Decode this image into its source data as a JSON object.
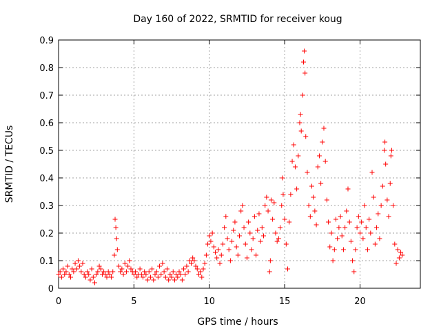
{
  "chart_data": {
    "type": "scatter",
    "title": "Day 160 of 2022, SRMTID for receiver koug",
    "xlabel": "GPS time / hours",
    "ylabel": "SRMTID / TECUs",
    "xlim": [
      0,
      24
    ],
    "ylim": [
      0,
      0.9
    ],
    "xticks": [
      0,
      5,
      10,
      15,
      20
    ],
    "yticks": [
      0,
      0.1,
      0.2,
      0.3,
      0.4,
      0.5,
      0.6,
      0.7,
      0.8,
      0.9
    ],
    "ytick_labels": [
      "0",
      "0.1",
      "0.2",
      "0.3",
      "0.4",
      "0.5",
      "0.6",
      "0.7",
      "0.8",
      "0.9"
    ],
    "grid": true,
    "marker": "+",
    "color": "#ff0000",
    "series": [
      {
        "name": "SRMTID",
        "points": [
          [
            0.0,
            0.05
          ],
          [
            0.1,
            0.06
          ],
          [
            0.2,
            0.04
          ],
          [
            0.3,
            0.07
          ],
          [
            0.4,
            0.05
          ],
          [
            0.5,
            0.06
          ],
          [
            0.6,
            0.08
          ],
          [
            0.7,
            0.05
          ],
          [
            0.8,
            0.04
          ],
          [
            0.9,
            0.07
          ],
          [
            1.0,
            0.06
          ],
          [
            1.1,
            0.09
          ],
          [
            1.2,
            0.07
          ],
          [
            1.3,
            0.1
          ],
          [
            1.4,
            0.08
          ],
          [
            1.5,
            0.06
          ],
          [
            1.6,
            0.09
          ],
          [
            1.7,
            0.05
          ],
          [
            1.8,
            0.04
          ],
          [
            1.9,
            0.06
          ],
          [
            2.0,
            0.05
          ],
          [
            2.1,
            0.03
          ],
          [
            2.2,
            0.07
          ],
          [
            2.3,
            0.04
          ],
          [
            2.4,
            0.02
          ],
          [
            2.5,
            0.05
          ],
          [
            2.6,
            0.06
          ],
          [
            2.7,
            0.08
          ],
          [
            2.8,
            0.07
          ],
          [
            2.9,
            0.05
          ],
          [
            3.0,
            0.06
          ],
          [
            3.1,
            0.05
          ],
          [
            3.2,
            0.04
          ],
          [
            3.3,
            0.06
          ],
          [
            3.4,
            0.05
          ],
          [
            3.5,
            0.04
          ],
          [
            3.6,
            0.06
          ],
          [
            3.7,
            0.12
          ],
          [
            3.75,
            0.25
          ],
          [
            3.8,
            0.22
          ],
          [
            3.85,
            0.18
          ],
          [
            3.9,
            0.14
          ],
          [
            4.0,
            0.08
          ],
          [
            4.1,
            0.06
          ],
          [
            4.2,
            0.07
          ],
          [
            4.3,
            0.05
          ],
          [
            4.4,
            0.09
          ],
          [
            4.5,
            0.06
          ],
          [
            4.6,
            0.08
          ],
          [
            4.7,
            0.1
          ],
          [
            4.8,
            0.07
          ],
          [
            4.9,
            0.06
          ],
          [
            5.0,
            0.05
          ],
          [
            5.1,
            0.06
          ],
          [
            5.2,
            0.04
          ],
          [
            5.3,
            0.05
          ],
          [
            5.4,
            0.07
          ],
          [
            5.5,
            0.05
          ],
          [
            5.6,
            0.04
          ],
          [
            5.7,
            0.06
          ],
          [
            5.8,
            0.05
          ],
          [
            5.9,
            0.03
          ],
          [
            6.0,
            0.06
          ],
          [
            6.1,
            0.04
          ],
          [
            6.2,
            0.07
          ],
          [
            6.3,
            0.03
          ],
          [
            6.4,
            0.05
          ],
          [
            6.5,
            0.06
          ],
          [
            6.6,
            0.04
          ],
          [
            6.7,
            0.08
          ],
          [
            6.8,
            0.05
          ],
          [
            6.9,
            0.09
          ],
          [
            7.0,
            0.06
          ],
          [
            7.1,
            0.04
          ],
          [
            7.2,
            0.07
          ],
          [
            7.3,
            0.03
          ],
          [
            7.4,
            0.05
          ],
          [
            7.5,
            0.04
          ],
          [
            7.6,
            0.06
          ],
          [
            7.7,
            0.03
          ],
          [
            7.8,
            0.05
          ],
          [
            7.9,
            0.04
          ],
          [
            8.0,
            0.06
          ],
          [
            8.1,
            0.05
          ],
          [
            8.2,
            0.03
          ],
          [
            8.3,
            0.07
          ],
          [
            8.4,
            0.05
          ],
          [
            8.5,
            0.08
          ],
          [
            8.6,
            0.06
          ],
          [
            8.7,
            0.1
          ],
          [
            8.8,
            0.09
          ],
          [
            8.9,
            0.11
          ],
          [
            9.0,
            0.1
          ],
          [
            9.1,
            0.08
          ],
          [
            9.2,
            0.07
          ],
          [
            9.3,
            0.05
          ],
          [
            9.4,
            0.06
          ],
          [
            9.5,
            0.04
          ],
          [
            9.6,
            0.07
          ],
          [
            9.7,
            0.09
          ],
          [
            9.8,
            0.12
          ],
          [
            9.9,
            0.16
          ],
          [
            10.0,
            0.19
          ],
          [
            10.1,
            0.17
          ],
          [
            10.2,
            0.2
          ],
          [
            10.3,
            0.15
          ],
          [
            10.4,
            0.13
          ],
          [
            10.5,
            0.11
          ],
          [
            10.6,
            0.14
          ],
          [
            10.7,
            0.09
          ],
          [
            10.8,
            0.12
          ],
          [
            10.9,
            0.16
          ],
          [
            11.0,
            0.22
          ],
          [
            11.1,
            0.26
          ],
          [
            11.2,
            0.18
          ],
          [
            11.3,
            0.14
          ],
          [
            11.4,
            0.1
          ],
          [
            11.5,
            0.17
          ],
          [
            11.6,
            0.21
          ],
          [
            11.7,
            0.24
          ],
          [
            11.8,
            0.15
          ],
          [
            11.9,
            0.12
          ],
          [
            12.0,
            0.19
          ],
          [
            12.1,
            0.28
          ],
          [
            12.2,
            0.3
          ],
          [
            12.3,
            0.22
          ],
          [
            12.4,
            0.16
          ],
          [
            12.5,
            0.11
          ],
          [
            12.6,
            0.24
          ],
          [
            12.7,
            0.2
          ],
          [
            12.8,
            0.14
          ],
          [
            12.9,
            0.18
          ],
          [
            13.0,
            0.26
          ],
          [
            13.1,
            0.12
          ],
          [
            13.2,
            0.21
          ],
          [
            13.3,
            0.27
          ],
          [
            13.4,
            0.17
          ],
          [
            13.5,
            0.22
          ],
          [
            13.6,
            0.19
          ],
          [
            13.7,
            0.3
          ],
          [
            13.8,
            0.33
          ],
          [
            13.9,
            0.28
          ],
          [
            14.0,
            0.06
          ],
          [
            14.05,
            0.1
          ],
          [
            14.1,
            0.32
          ],
          [
            14.2,
            0.25
          ],
          [
            14.3,
            0.31
          ],
          [
            14.4,
            0.2
          ],
          [
            14.5,
            0.17
          ],
          [
            14.6,
            0.18
          ],
          [
            14.7,
            0.22
          ],
          [
            14.8,
            0.3
          ],
          [
            14.85,
            0.4
          ],
          [
            14.9,
            0.34
          ],
          [
            15.0,
            0.25
          ],
          [
            15.1,
            0.16
          ],
          [
            15.2,
            0.07
          ],
          [
            15.3,
            0.24
          ],
          [
            15.4,
            0.34
          ],
          [
            15.5,
            0.46
          ],
          [
            15.6,
            0.52
          ],
          [
            15.7,
            0.44
          ],
          [
            15.8,
            0.36
          ],
          [
            15.9,
            0.48
          ],
          [
            16.0,
            0.6
          ],
          [
            16.05,
            0.63
          ],
          [
            16.1,
            0.57
          ],
          [
            16.2,
            0.7
          ],
          [
            16.25,
            0.82
          ],
          [
            16.3,
            0.86
          ],
          [
            16.35,
            0.78
          ],
          [
            16.4,
            0.55
          ],
          [
            16.5,
            0.42
          ],
          [
            16.6,
            0.3
          ],
          [
            16.7,
            0.26
          ],
          [
            16.8,
            0.37
          ],
          [
            16.9,
            0.33
          ],
          [
            17.0,
            0.28
          ],
          [
            17.1,
            0.23
          ],
          [
            17.2,
            0.44
          ],
          [
            17.3,
            0.48
          ],
          [
            17.4,
            0.38
          ],
          [
            17.5,
            0.53
          ],
          [
            17.6,
            0.58
          ],
          [
            17.7,
            0.46
          ],
          [
            17.8,
            0.32
          ],
          [
            17.9,
            0.24
          ],
          [
            18.0,
            0.15
          ],
          [
            18.1,
            0.2
          ],
          [
            18.2,
            0.1
          ],
          [
            18.3,
            0.14
          ],
          [
            18.4,
            0.25
          ],
          [
            18.5,
            0.18
          ],
          [
            18.6,
            0.22
          ],
          [
            18.7,
            0.26
          ],
          [
            18.8,
            0.19
          ],
          [
            18.9,
            0.14
          ],
          [
            19.0,
            0.22
          ],
          [
            19.1,
            0.28
          ],
          [
            19.2,
            0.36
          ],
          [
            19.3,
            0.24
          ],
          [
            19.4,
            0.17
          ],
          [
            19.5,
            0.1
          ],
          [
            19.6,
            0.06
          ],
          [
            19.7,
            0.14
          ],
          [
            19.8,
            0.22
          ],
          [
            19.9,
            0.26
          ],
          [
            20.0,
            0.2
          ],
          [
            20.1,
            0.24
          ],
          [
            20.2,
            0.18
          ],
          [
            20.3,
            0.3
          ],
          [
            20.4,
            0.22
          ],
          [
            20.5,
            0.14
          ],
          [
            20.6,
            0.25
          ],
          [
            20.7,
            0.2
          ],
          [
            20.8,
            0.42
          ],
          [
            20.9,
            0.33
          ],
          [
            21.0,
            0.16
          ],
          [
            21.1,
            0.22
          ],
          [
            21.2,
            0.27
          ],
          [
            21.3,
            0.18
          ],
          [
            21.4,
            0.3
          ],
          [
            21.5,
            0.37
          ],
          [
            21.6,
            0.5
          ],
          [
            21.65,
            0.53
          ],
          [
            21.7,
            0.45
          ],
          [
            21.8,
            0.32
          ],
          [
            21.9,
            0.26
          ],
          [
            22.0,
            0.38
          ],
          [
            22.05,
            0.48
          ],
          [
            22.1,
            0.5
          ],
          [
            22.2,
            0.3
          ],
          [
            22.3,
            0.16
          ],
          [
            22.4,
            0.09
          ],
          [
            22.5,
            0.14
          ],
          [
            22.6,
            0.11
          ],
          [
            22.7,
            0.13
          ],
          [
            22.8,
            0.12
          ]
        ]
      }
    ]
  }
}
